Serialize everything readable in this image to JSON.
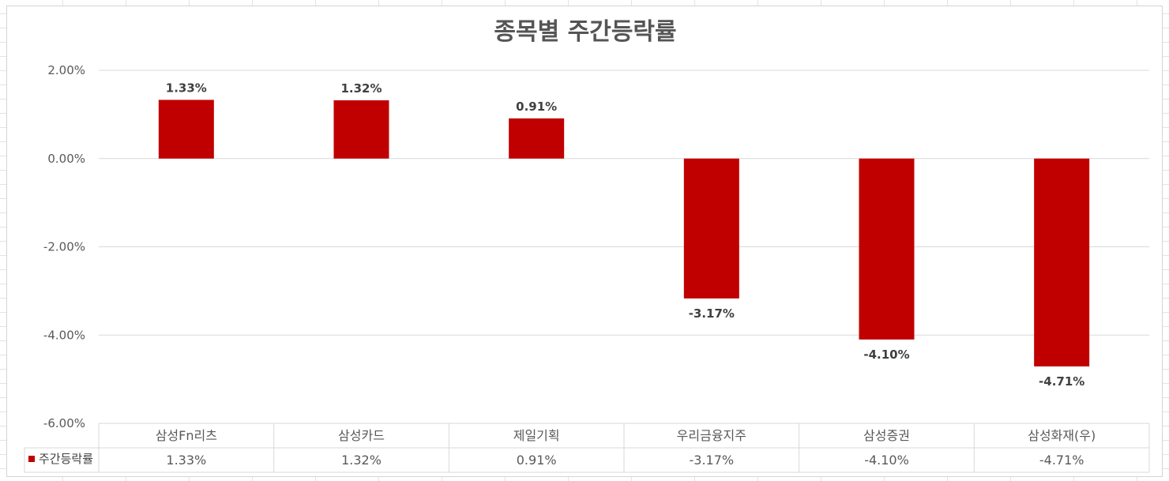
{
  "chart_data": {
    "type": "bar",
    "title": "종목별 주간등락률",
    "categories": [
      "삼성Fn리츠",
      "삼성카드",
      "제일기획",
      "우리금융지주",
      "삼성증권",
      "삼성화재(우)"
    ],
    "series": [
      {
        "name": "주간등락률",
        "values": [
          1.33,
          1.32,
          0.91,
          -3.17,
          -4.1,
          -4.71
        ],
        "value_labels": [
          "1.33%",
          "1.32%",
          "0.91%",
          "-3.17%",
          "-4.10%",
          "-4.71%"
        ]
      }
    ],
    "ylim": [
      -6,
      2
    ],
    "yticks": [
      2,
      0,
      -2,
      -4,
      -6
    ],
    "ytick_labels": [
      "2.00%",
      "0.00%",
      "-2.00%",
      "-4.00%",
      "-6.00%"
    ],
    "grid": true,
    "legend": "data-table-left",
    "data_table": true
  },
  "colors": {
    "bar": "#c00000",
    "title": "#555555",
    "gridline": "#d9d9d9"
  }
}
